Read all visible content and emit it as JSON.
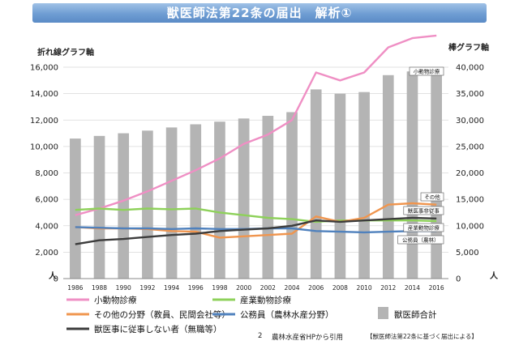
{
  "header": {
    "title": "獣医師法第22条の届出　解析①"
  },
  "chart_data": {
    "type": "bar+line",
    "categories": [
      "1986",
      "1988",
      "1990",
      "1992",
      "1994",
      "1996",
      "1998",
      "2000",
      "2002",
      "2004",
      "2006",
      "2008",
      "2010",
      "2012",
      "2014",
      "2016"
    ],
    "left_axis": {
      "label": "折れ線グラフ軸",
      "unit": "人",
      "range": [
        0,
        16000
      ],
      "ticks": [
        "0",
        "2,000",
        "4,000",
        "6,000",
        "8,000",
        "10,000",
        "12,000",
        "14,000",
        "16,000"
      ]
    },
    "right_axis": {
      "label": "棒グラフ軸",
      "unit": "人",
      "range": [
        0,
        40000
      ],
      "ticks": [
        "0",
        "5,000",
        "10,000",
        "15,000",
        "20,000",
        "25,000",
        "30,000",
        "35,000",
        "40,000"
      ]
    },
    "bars": {
      "name": "獣医師合計",
      "color": "#b4b4b4",
      "values": [
        26500,
        27000,
        27500,
        28000,
        28600,
        29200,
        29700,
        30300,
        30800,
        31500,
        35800,
        35000,
        35300,
        38500,
        39200,
        39000
      ]
    },
    "series": [
      {
        "name": "小動物診療",
        "color": "#ef8fc4",
        "values": [
          4800,
          5300,
          5900,
          6600,
          7400,
          8200,
          9100,
          10200,
          10900,
          12000,
          15600,
          15000,
          15600,
          17500,
          18200,
          18400
        ],
        "inline_label": "小動物診療"
      },
      {
        "name": "産業動物診療",
        "color": "#8ed15a",
        "values": [
          5200,
          5300,
          5200,
          5300,
          5250,
          5300,
          5000,
          4800,
          4600,
          4500,
          4300,
          4400,
          4400,
          4400,
          4400,
          4350
        ],
        "inline_label": "産業動物診療"
      },
      {
        "name": "その他の分野（教員、民間会社等）",
        "color": "#f0954e",
        "values": [
          3900,
          3800,
          3800,
          3750,
          3600,
          3550,
          3100,
          3200,
          3300,
          3400,
          4700,
          4300,
          4600,
          5600,
          5700,
          5600
        ],
        "inline_label": "その他"
      },
      {
        "name": "公務員（農林水産分野）",
        "color": "#4f81bd",
        "values": [
          3900,
          3850,
          3800,
          3800,
          3750,
          3800,
          3750,
          3750,
          3800,
          3800,
          3600,
          3550,
          3500,
          3550,
          3600,
          3600
        ],
        "inline_label": "公務員（農林）"
      },
      {
        "name": "獣医事に従事しない者（無職等）",
        "color": "#3c3c3c",
        "values": [
          2600,
          2900,
          3000,
          3150,
          3300,
          3400,
          3600,
          3700,
          3800,
          4000,
          4400,
          4300,
          4400,
          4500,
          4600,
          4550
        ],
        "inline_label": "獣医事非従事"
      }
    ],
    "extra_label": "産業動物診療"
  },
  "footer": {
    "page_number": "2",
    "source": "農林水産省HPから引用",
    "citation": "【獣医師法第22条に基づく届出による】"
  }
}
